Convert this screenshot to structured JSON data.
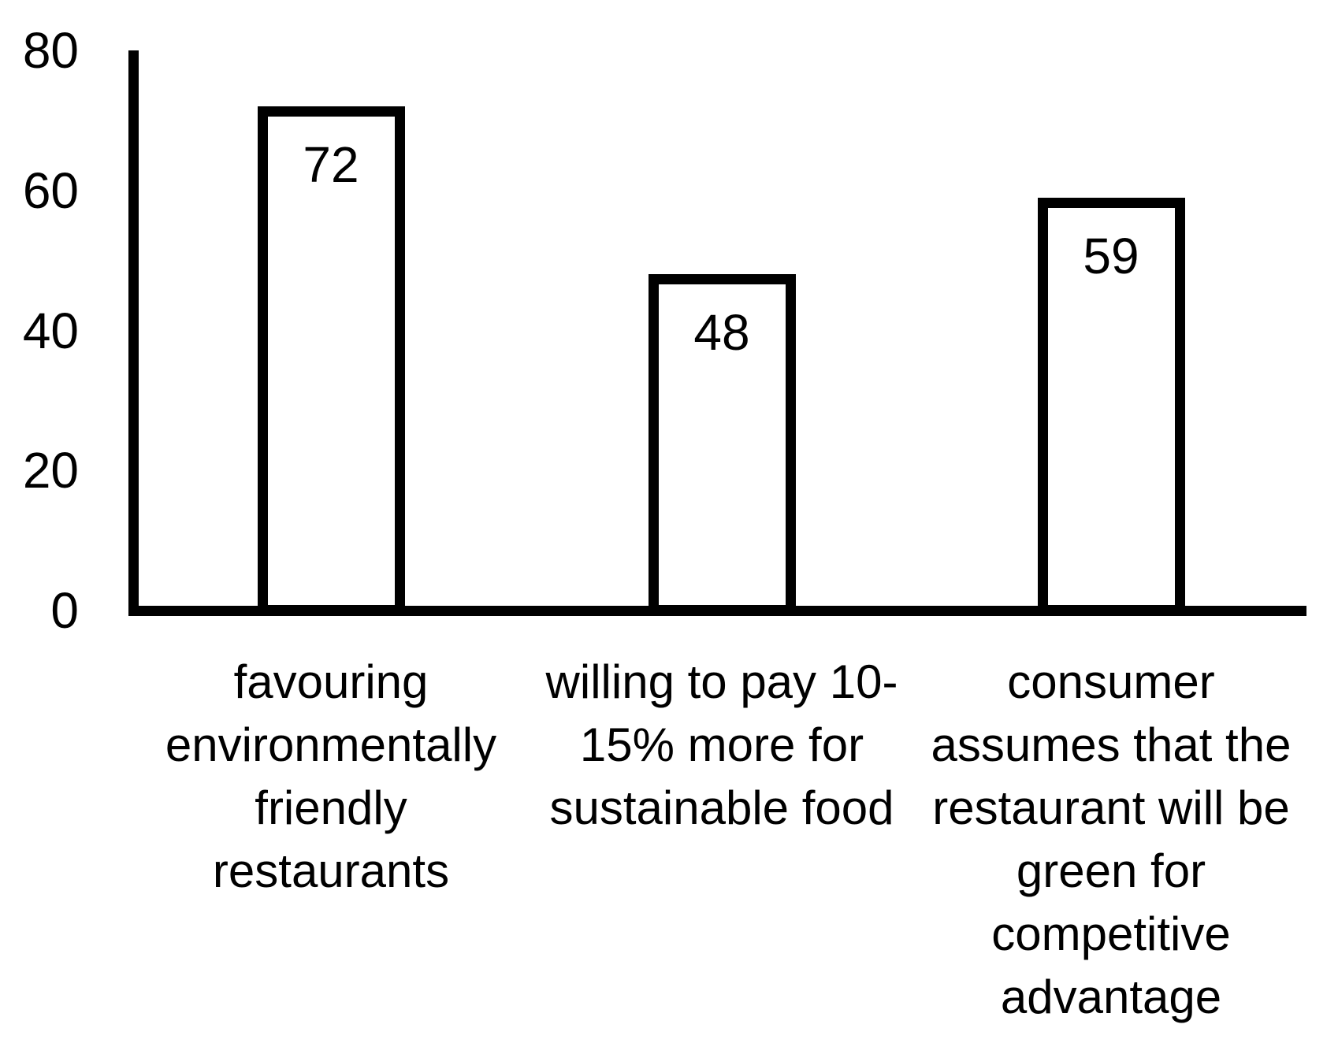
{
  "chart_data": {
    "type": "bar",
    "title": "",
    "xlabel": "",
    "ylabel": "",
    "categories": [
      "favouring environmentally friendly restaurants",
      "willing to pay 10-15% more for sustainable food",
      "consumer assumes that the restaurant will be green for competitive advantage"
    ],
    "category_lines": [
      [
        "favouring",
        "environmentally",
        "friendly",
        "restaurants"
      ],
      [
        "willing to pay 10-",
        "15% more for",
        "sustainable food"
      ],
      [
        "consumer",
        "assumes that the",
        "restaurant will be",
        "green for",
        "competitive",
        "advantage"
      ]
    ],
    "values": [
      72,
      48,
      59
    ],
    "data_labels": [
      "72",
      "48",
      "59"
    ],
    "ylim": [
      0,
      80
    ],
    "yticks": [
      0,
      20,
      40,
      60,
      80
    ],
    "grid": false,
    "legend": "none",
    "colors": {
      "bar_fill": "#ffffff",
      "bar_border": "#000000",
      "axis": "#000000",
      "text": "#000000",
      "background": "#ffffff"
    }
  }
}
